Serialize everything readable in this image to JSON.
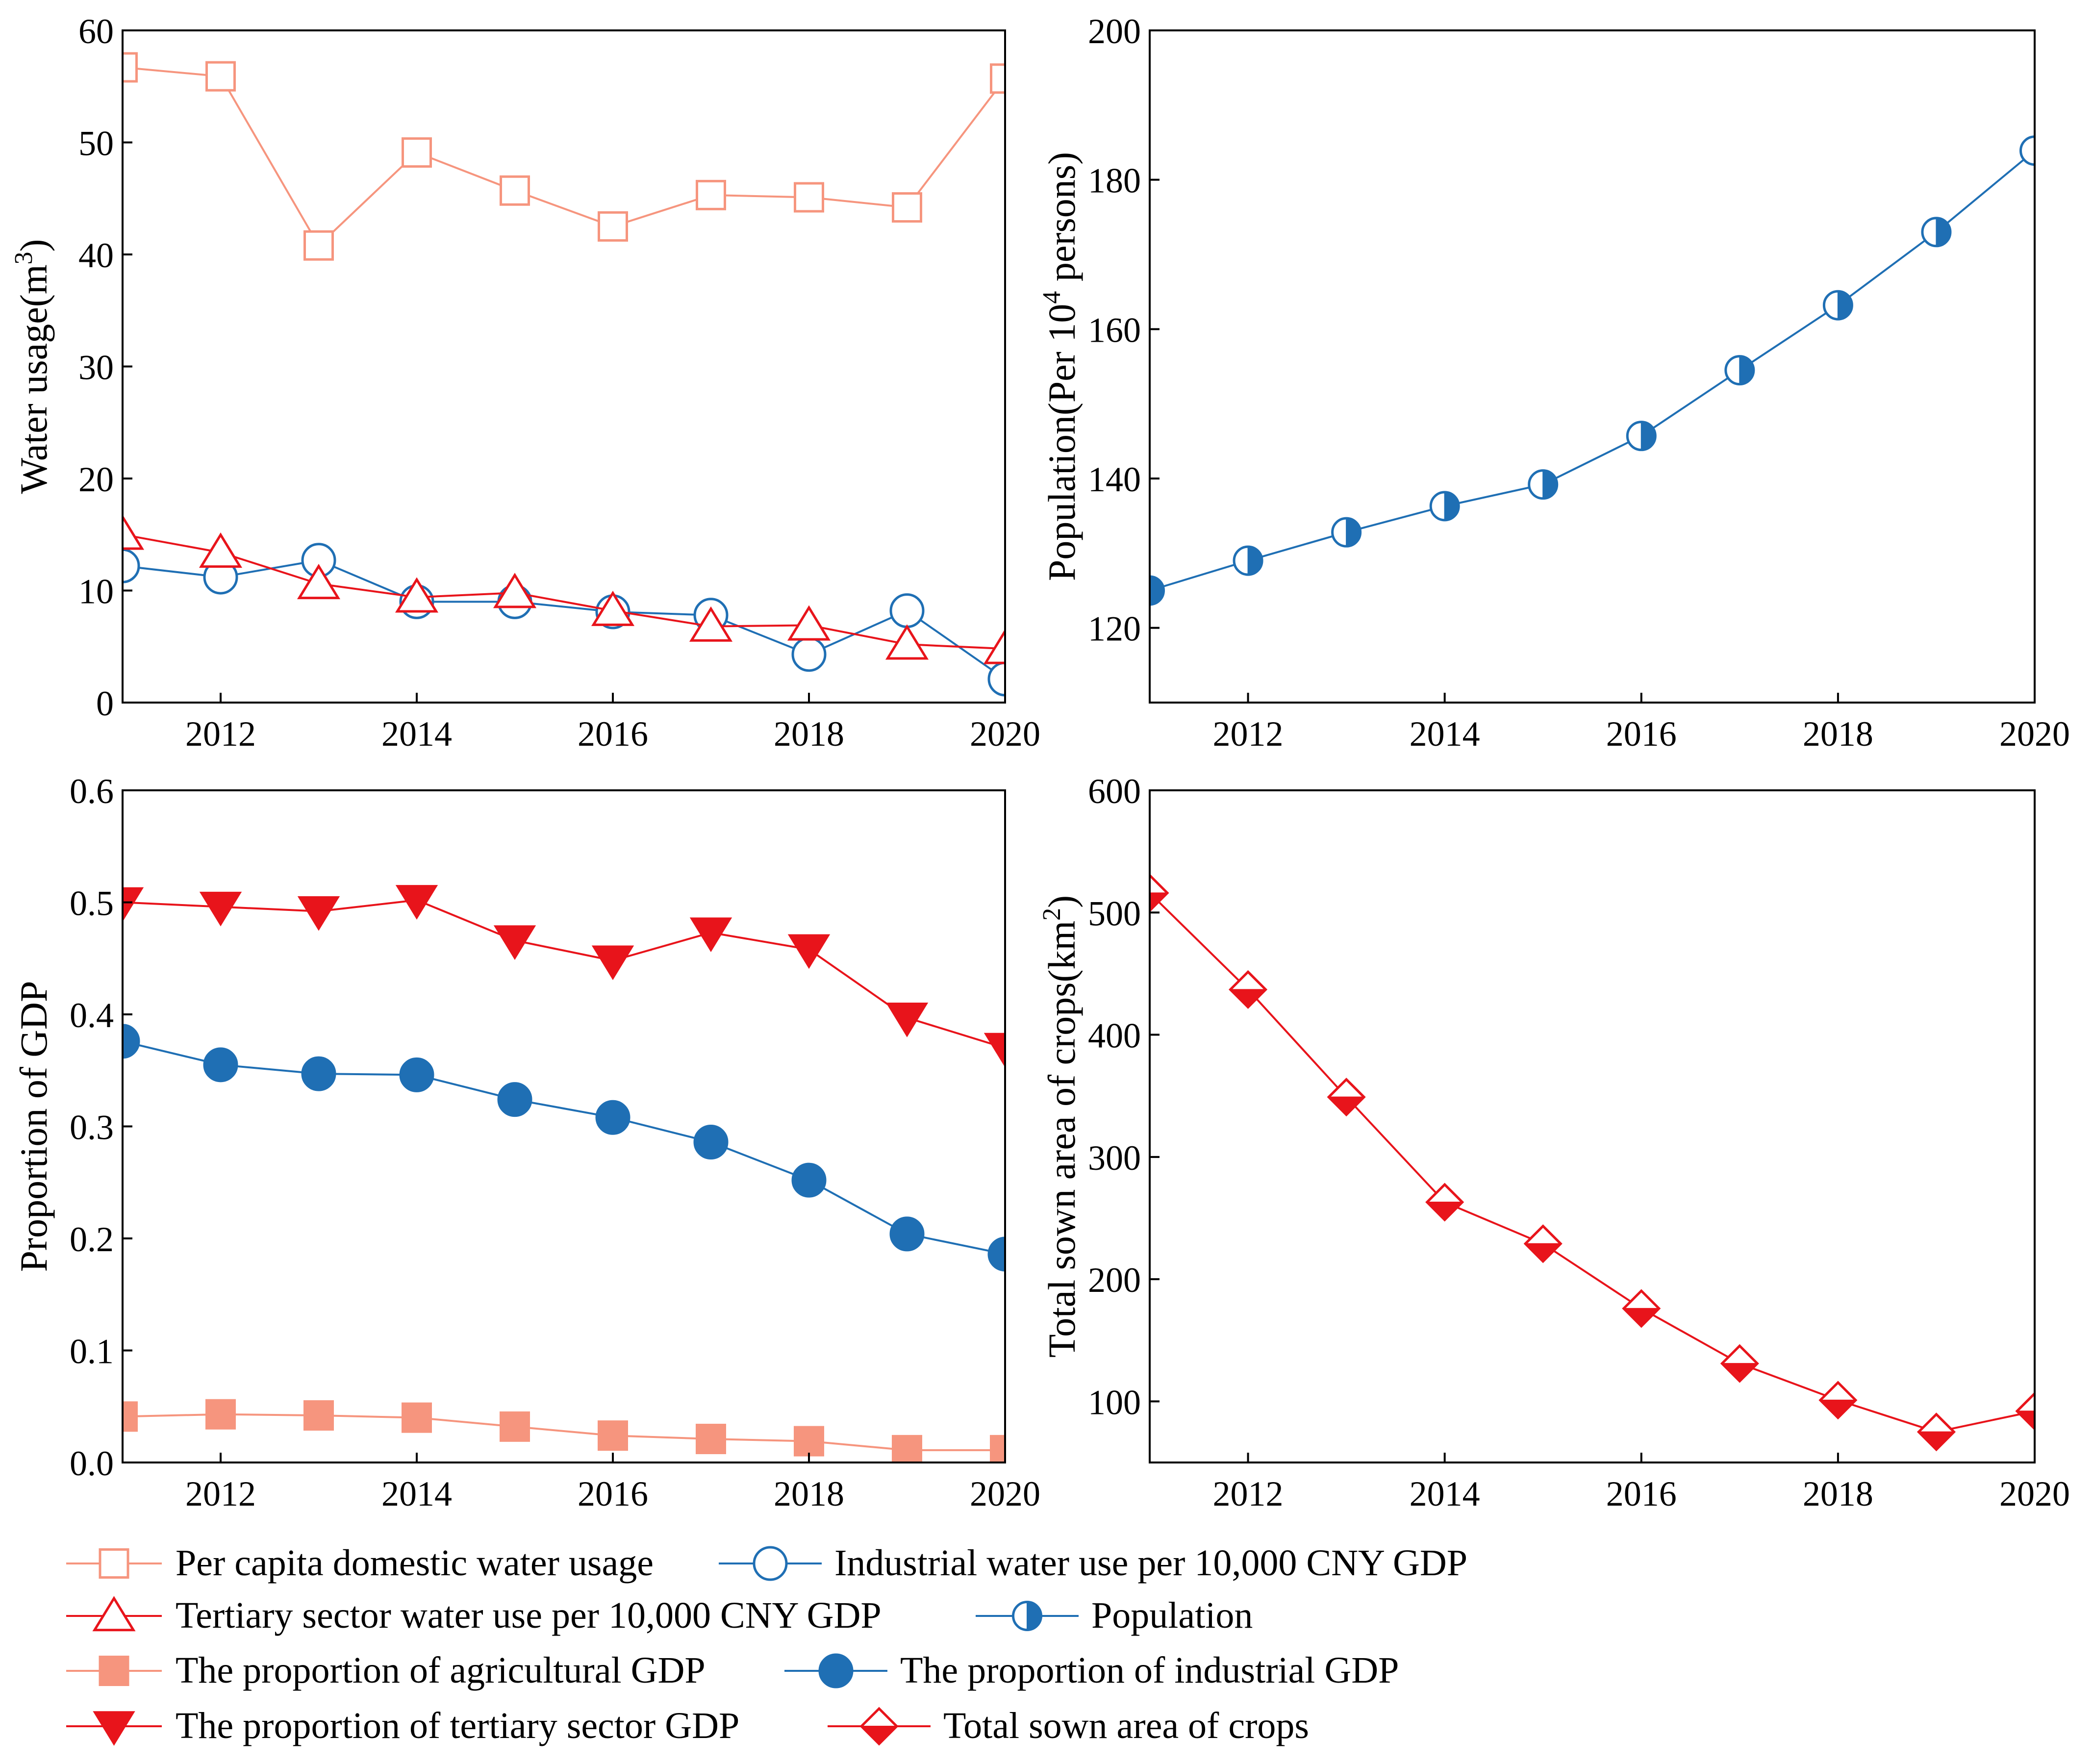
{
  "colors": {
    "salmon": "#F6957E",
    "blue": "#1F6FB4",
    "red": "#E8141B"
  },
  "legend": {
    "items": [
      {
        "label": "Per capita domestic water usage",
        "series_ref": "domestic",
        "marker": "square-open",
        "color": "#F6957E"
      },
      {
        "label": "Industrial water use per 10,000 CNY GDP",
        "series_ref": "industrial",
        "marker": "circle-open",
        "color": "#1F6FB4"
      },
      {
        "label": "Tertiary sector water use per 10,000 CNY GDP",
        "series_ref": "tertiary",
        "marker": "triangle-open",
        "color": "#E8141B"
      },
      {
        "label": "Population",
        "series_ref": "population",
        "marker": "circle-half",
        "color": "#1F6FB4"
      },
      {
        "label": "The proportion of agricultural GDP",
        "series_ref": "agri_gdp",
        "marker": "square-filled",
        "color": "#F6957E"
      },
      {
        "label": "The proportion of industrial GDP",
        "series_ref": "ind_gdp",
        "marker": "circle-filled",
        "color": "#1F6FB4"
      },
      {
        "label": "The proportion of tertiary sector GDP",
        "series_ref": "ter_gdp",
        "marker": "triangle-down-filled",
        "color": "#E8141B"
      },
      {
        "label": "Total sown area of crops",
        "series_ref": "sown",
        "marker": "diamond-half",
        "color": "#E8141B"
      }
    ]
  },
  "chart_data": [
    {
      "id": "water-usage",
      "type": "line",
      "ylabel_main": "Water usage(m",
      "ylabel_sup": "3",
      "ylabel_end": ")",
      "xlim": [
        2011,
        2020
      ],
      "ylim": [
        0,
        60
      ],
      "xticks": [
        2012,
        2014,
        2016,
        2018,
        2020
      ],
      "yticks": [
        0,
        10,
        20,
        30,
        40,
        50,
        60
      ],
      "x": [
        2011,
        2012,
        2013,
        2014,
        2015,
        2016,
        2017,
        2018,
        2019,
        2020
      ],
      "series": [
        {
          "id": "domestic",
          "name": "Per capita domestic water usage",
          "marker": "square-open",
          "color": "#F6957E",
          "values": [
            56.7,
            55.9,
            40.8,
            49.1,
            45.7,
            42.5,
            45.3,
            45.1,
            44.2,
            55.7
          ]
        },
        {
          "id": "industrial",
          "name": "Industrial water use per 10,000 CNY GDP",
          "marker": "circle-open",
          "color": "#1F6FB4",
          "values": [
            12.2,
            11.2,
            12.7,
            9.0,
            9.0,
            8.1,
            7.8,
            4.3,
            8.2,
            2.1
          ]
        },
        {
          "id": "tertiary",
          "name": "Tertiary sector water use per 10,000 CNY GDP",
          "marker": "triangle-open",
          "color": "#E8141B",
          "values": [
            15.0,
            13.4,
            10.6,
            9.4,
            9.8,
            8.2,
            6.8,
            6.9,
            5.2,
            4.8
          ]
        }
      ]
    },
    {
      "id": "population",
      "type": "line",
      "ylabel_main": "Population(Per 10",
      "ylabel_sup": "4",
      "ylabel_end": " persons)",
      "xlim": [
        2011,
        2020
      ],
      "ylim": [
        110,
        200
      ],
      "xticks": [
        2012,
        2014,
        2016,
        2018,
        2020
      ],
      "yticks": [
        120,
        140,
        160,
        180,
        200
      ],
      "x": [
        2011,
        2012,
        2013,
        2014,
        2015,
        2016,
        2017,
        2018,
        2019,
        2020
      ],
      "series": [
        {
          "id": "population",
          "name": "Population",
          "marker": "circle-half",
          "color": "#1F6FB4",
          "values": [
            125.0,
            129.0,
            132.8,
            136.3,
            139.2,
            145.7,
            154.5,
            163.2,
            173.0,
            183.9
          ]
        }
      ]
    },
    {
      "id": "gdp-proportion",
      "type": "line",
      "ylabel_main": "Proportion of GDP",
      "ylabel_sup": "",
      "ylabel_end": "",
      "xlim": [
        2011,
        2020
      ],
      "ylim": [
        0.0,
        0.6
      ],
      "xticks": [
        2012,
        2014,
        2016,
        2018,
        2020
      ],
      "yticks": [
        0.0,
        0.1,
        0.2,
        0.3,
        0.4,
        0.5,
        0.6
      ],
      "ytick_labels": [
        "0.0",
        "0.1",
        "0.2",
        "0.3",
        "0.4",
        "0.5",
        "0.6"
      ],
      "x": [
        2011,
        2012,
        2013,
        2014,
        2015,
        2016,
        2017,
        2018,
        2019,
        2020
      ],
      "series": [
        {
          "id": "agri_gdp",
          "name": "The proportion of agricultural GDP",
          "marker": "square-filled",
          "color": "#F6957E",
          "values": [
            0.041,
            0.043,
            0.042,
            0.04,
            0.032,
            0.024,
            0.021,
            0.019,
            0.011,
            0.011
          ]
        },
        {
          "id": "ind_gdp",
          "name": "The proportion of industrial GDP",
          "marker": "circle-filled",
          "color": "#1F6FB4",
          "values": [
            0.376,
            0.355,
            0.347,
            0.346,
            0.324,
            0.308,
            0.286,
            0.252,
            0.204,
            0.186
          ]
        },
        {
          "id": "ter_gdp",
          "name": "The proportion of tertiary sector GDP",
          "marker": "triangle-down-filled",
          "color": "#E8141B",
          "values": [
            0.5,
            0.496,
            0.492,
            0.502,
            0.466,
            0.448,
            0.473,
            0.458,
            0.397,
            0.37
          ]
        }
      ]
    },
    {
      "id": "sown-area",
      "type": "line",
      "ylabel_main": "Total sown area of crops(km",
      "ylabel_sup": "2",
      "ylabel_end": ")",
      "xlim": [
        2011,
        2020
      ],
      "ylim": [
        50,
        600
      ],
      "xticks": [
        2012,
        2014,
        2016,
        2018,
        2020
      ],
      "yticks": [
        100,
        200,
        300,
        400,
        500,
        600
      ],
      "x": [
        2011,
        2012,
        2013,
        2014,
        2015,
        2016,
        2017,
        2018,
        2019,
        2020
      ],
      "series": [
        {
          "id": "sown",
          "name": "Total sown area of crops",
          "marker": "diamond-half",
          "color": "#E8141B",
          "values": [
            516,
            437,
            349,
            263,
            229,
            176,
            131,
            101,
            75,
            92
          ]
        }
      ]
    }
  ]
}
